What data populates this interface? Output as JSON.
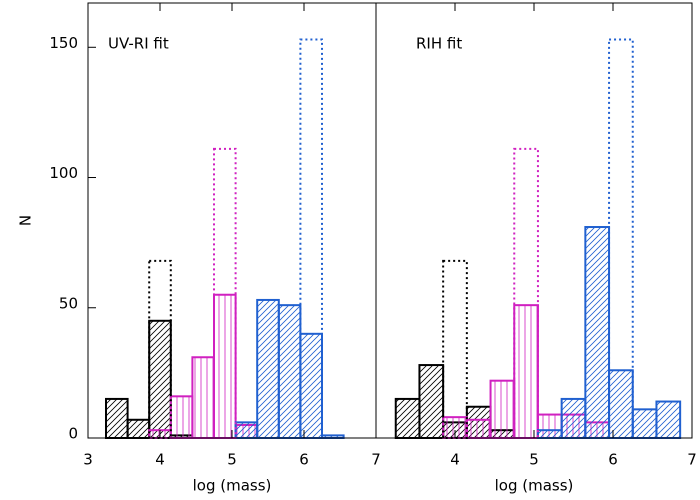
{
  "chart_data": [
    {
      "type": "histogram",
      "annotation": "UV-RI fit",
      "xlabel": "log (mass)",
      "ylabel": "N",
      "xlim": [
        3,
        7
      ],
      "ylim": [
        0,
        167
      ],
      "xticks": [
        3,
        4,
        5,
        6,
        7
      ],
      "yticks": [
        0,
        50,
        100,
        150
      ],
      "bins": [
        3.25,
        3.55,
        3.85,
        4.15,
        4.45,
        4.75,
        5.05,
        5.35,
        5.65,
        5.95,
        6.25,
        6.55,
        6.85,
        7.15
      ],
      "series": [
        {
          "color": "#000000",
          "style": "diagonal",
          "values": [
            15,
            7,
            45,
            1,
            0,
            0,
            0,
            0,
            0,
            0,
            0,
            0,
            0
          ]
        },
        {
          "color": "#d020c0",
          "style": "vertical",
          "values": [
            0,
            0,
            3,
            16,
            31,
            55,
            5,
            0,
            0,
            0,
            0,
            0,
            0
          ]
        },
        {
          "color": "#2060d0",
          "style": "diagonal",
          "values": [
            0,
            0,
            0,
            0,
            0,
            0,
            6,
            53,
            51,
            40,
            1,
            0,
            0
          ]
        },
        {
          "color": "#000000",
          "style": "dotted",
          "values": [
            0,
            0,
            68,
            0,
            0,
            0,
            0,
            0,
            0,
            0,
            0,
            0,
            0
          ]
        },
        {
          "color": "#d020c0",
          "style": "dotted",
          "values": [
            0,
            0,
            0,
            0,
            0,
            111,
            0,
            0,
            0,
            0,
            0,
            0,
            0
          ]
        },
        {
          "color": "#2060d0",
          "style": "dotted",
          "values": [
            0,
            0,
            0,
            0,
            0,
            0,
            0,
            0,
            0,
            153,
            0,
            0,
            0
          ]
        }
      ]
    },
    {
      "type": "histogram",
      "annotation": "RIH fit",
      "xlabel": "log (mass)",
      "xlim": [
        3,
        7
      ],
      "ylim": [
        0,
        167
      ],
      "xticks": [
        4,
        5,
        6,
        7
      ],
      "bins": [
        3.25,
        3.55,
        3.85,
        4.15,
        4.45,
        4.75,
        5.05,
        5.35,
        5.65,
        5.95,
        6.25,
        6.55,
        6.85,
        7.15
      ],
      "series": [
        {
          "color": "#000000",
          "style": "diagonal",
          "values": [
            15,
            28,
            6,
            12,
            3,
            0,
            0,
            0,
            0,
            0,
            0,
            0,
            0
          ]
        },
        {
          "color": "#d020c0",
          "style": "vertical",
          "values": [
            0,
            0,
            8,
            7,
            22,
            51,
            9,
            9,
            6,
            0,
            0,
            0,
            0
          ]
        },
        {
          "color": "#2060d0",
          "style": "diagonal",
          "values": [
            0,
            0,
            0,
            0,
            0,
            0,
            3,
            15,
            81,
            26,
            11,
            14,
            0
          ]
        },
        {
          "color": "#000000",
          "style": "dotted",
          "values": [
            0,
            0,
            68,
            0,
            0,
            0,
            0,
            0,
            0,
            0,
            0,
            0,
            0
          ]
        },
        {
          "color": "#d020c0",
          "style": "dotted",
          "values": [
            0,
            0,
            0,
            0,
            0,
            111,
            0,
            0,
            0,
            0,
            0,
            0,
            0
          ]
        },
        {
          "color": "#2060d0",
          "style": "dotted",
          "values": [
            0,
            0,
            0,
            0,
            0,
            0,
            0,
            0,
            0,
            153,
            0,
            0,
            0
          ]
        }
      ]
    }
  ]
}
